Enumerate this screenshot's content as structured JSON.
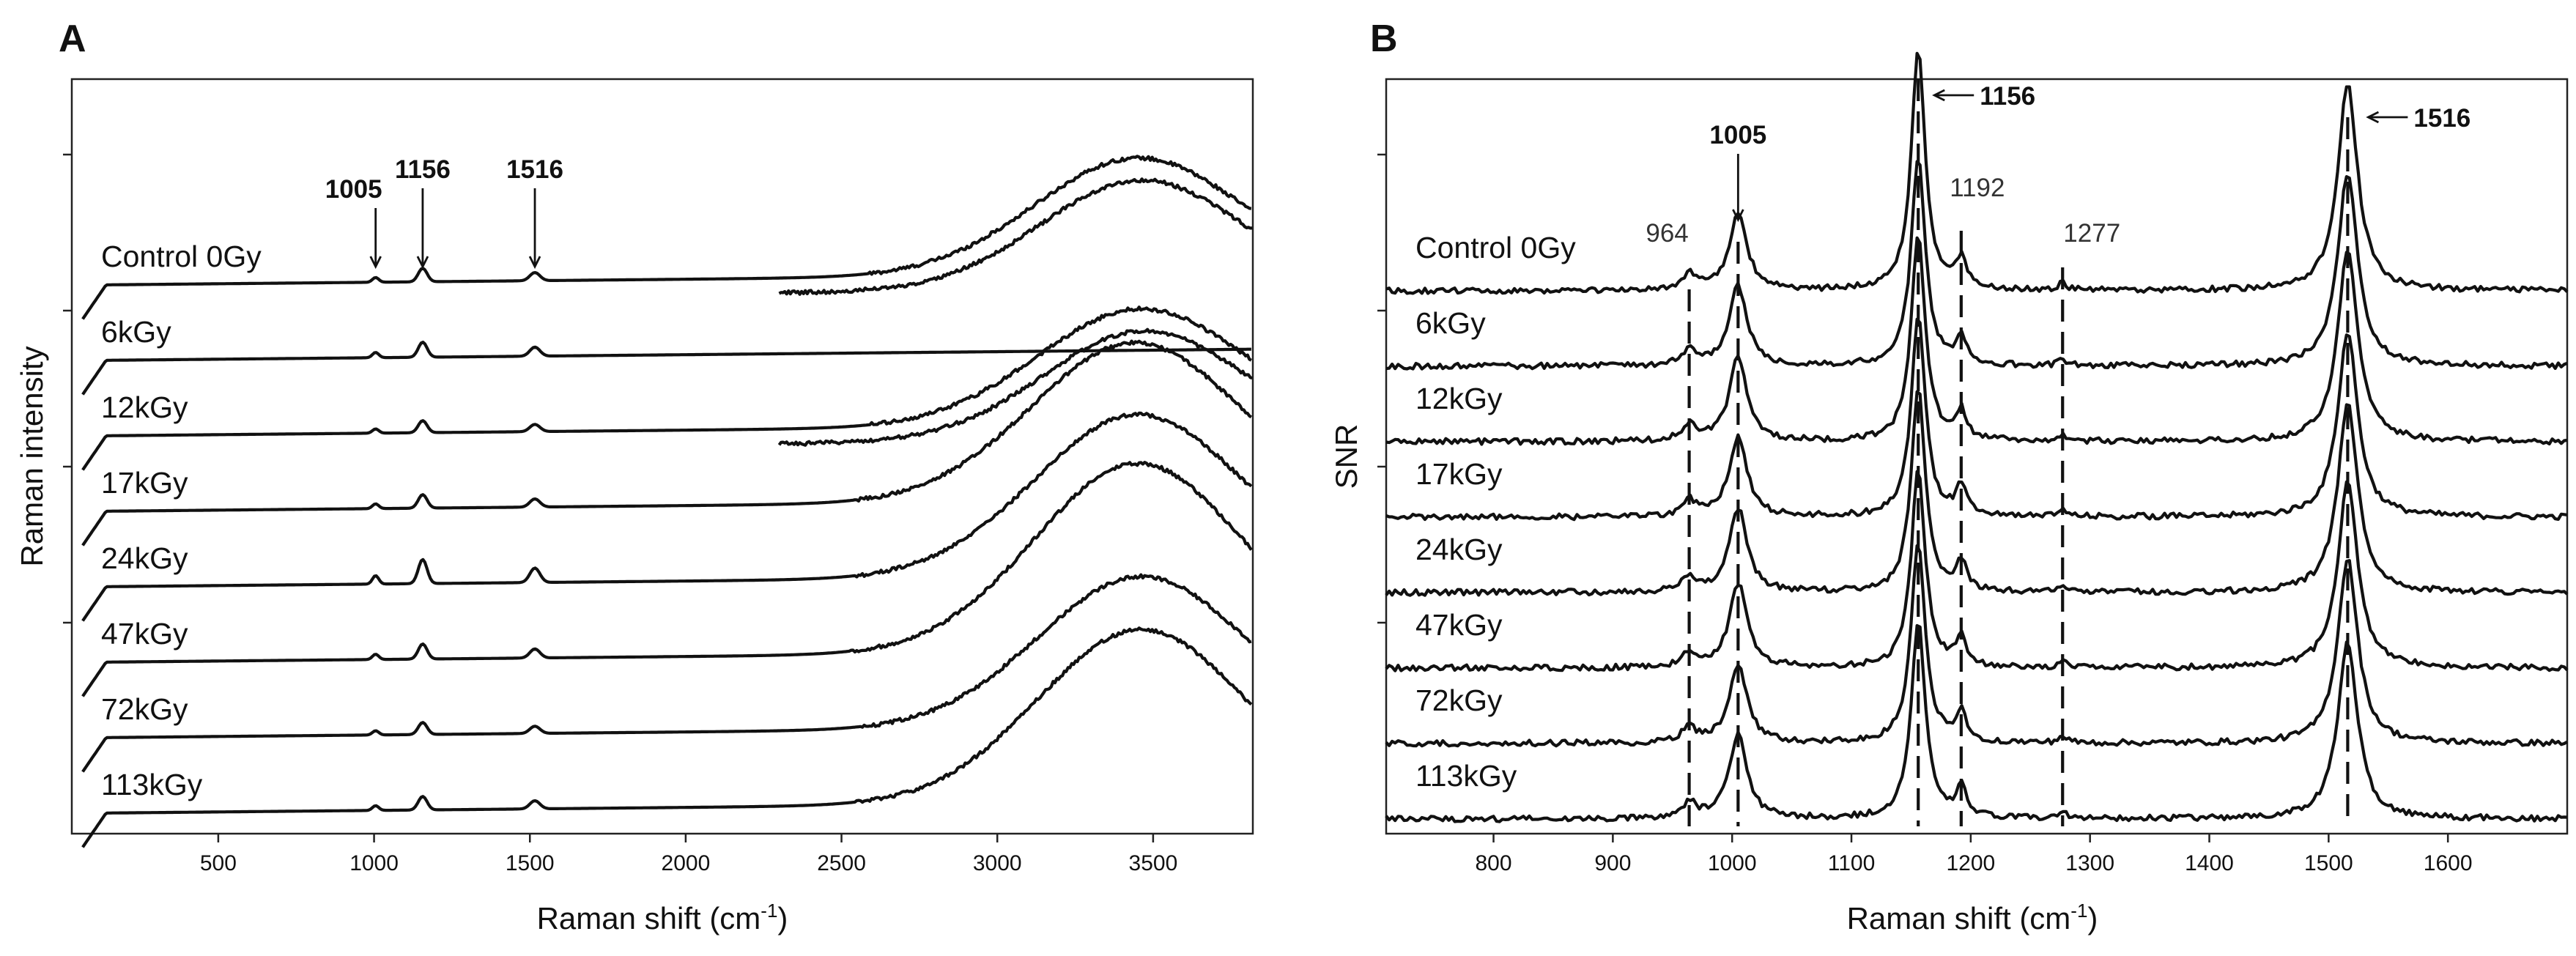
{
  "chart_data": [
    {
      "panel": "A",
      "type": "line",
      "xlabel": "Raman shift (cm-1)",
      "ylabel": "Raman intensity",
      "xlim": [
        30,
        3820
      ],
      "xticks": [
        "500",
        "1000",
        "1500",
        "2000",
        "2500",
        "3000",
        "3500"
      ],
      "xtick_values": [
        500,
        1000,
        1500,
        2000,
        2500,
        3000,
        3500
      ],
      "peak_annotations": [
        {
          "label": "1005",
          "x": 1005
        },
        {
          "label": "1156",
          "x": 1156
        },
        {
          "label": "1516",
          "x": 1516
        }
      ],
      "series": [
        {
          "name": "Control 0Gy",
          "offset": 7.0,
          "band_height": 1.55,
          "band_height_2": 1.45,
          "band_center": 3450,
          "peak_scale": 0.18
        },
        {
          "name": "6kGy",
          "offset": 6.0,
          "band_height": 0.0,
          "band_height_2": 0.0,
          "band_center": 3450,
          "peak_scale": 0.2
        },
        {
          "name": "12kGy",
          "offset": 5.0,
          "band_height": 1.55,
          "band_height_2": 1.45,
          "band_center": 3460,
          "peak_scale": 0.16
        },
        {
          "name": "17kGy",
          "offset": 4.0,
          "band_height": 2.1,
          "band_height_2": 0.0,
          "band_center": 3440,
          "peak_scale": 0.18
        },
        {
          "name": "24kGy",
          "offset": 3.0,
          "band_height": 2.15,
          "band_height_2": 0.0,
          "band_center": 3450,
          "peak_scale": 0.32
        },
        {
          "name": "47kGy",
          "offset": 2.0,
          "band_height": 2.5,
          "band_height_2": 0.0,
          "band_center": 3450,
          "peak_scale": 0.2
        },
        {
          "name": "72kGy",
          "offset": 1.0,
          "band_height": 2.0,
          "band_height_2": 0.0,
          "band_center": 3460,
          "peak_scale": 0.16
        },
        {
          "name": "113kGy",
          "offset": 0.0,
          "band_height": 2.3,
          "band_height_2": 0.0,
          "band_center": 3460,
          "peak_scale": 0.18
        }
      ]
    },
    {
      "panel": "B",
      "type": "line",
      "xlabel": "Raman shift (cm-1)",
      "ylabel": "SNR",
      "xlim": [
        710,
        1700
      ],
      "xticks": [
        "800",
        "900",
        "1000",
        "1100",
        "1200",
        "1300",
        "1400",
        "1500",
        "1600"
      ],
      "xtick_values": [
        800,
        900,
        1000,
        1100,
        1200,
        1300,
        1400,
        1500,
        1600
      ],
      "dashed_lines": [
        964,
        1005,
        1156,
        1192,
        1277,
        1516
      ],
      "peak_annotations": [
        {
          "label": "964",
          "x": 964,
          "bold": false
        },
        {
          "label": "1005",
          "x": 1005,
          "bold": true
        },
        {
          "label": "1156",
          "x": 1156,
          "bold": true
        },
        {
          "label": "1192",
          "x": 1192,
          "bold": false
        },
        {
          "label": "1277",
          "x": 1277,
          "bold": false
        },
        {
          "label": "1516",
          "x": 1516,
          "bold": true
        }
      ],
      "series": [
        {
          "name": "Control 0Gy",
          "offset": 7.0,
          "p1005": 0.9,
          "p1156": 2.85,
          "p1516": 2.45
        },
        {
          "name": "6kGy",
          "offset": 6.0,
          "p1005": 0.95,
          "p1156": 2.5,
          "p1516": 2.3
        },
        {
          "name": "12kGy",
          "offset": 5.0,
          "p1005": 1.0,
          "p1156": 2.45,
          "p1516": 2.3
        },
        {
          "name": "17kGy",
          "offset": 4.0,
          "p1005": 0.95,
          "p1156": 2.4,
          "p1516": 2.2
        },
        {
          "name": "24kGy",
          "offset": 3.0,
          "p1005": 1.0,
          "p1156": 2.45,
          "p1516": 2.25
        },
        {
          "name": "47kGy",
          "offset": 2.0,
          "p1005": 1.0,
          "p1156": 2.35,
          "p1516": 2.2
        },
        {
          "name": "72kGy",
          "offset": 1.0,
          "p1005": 0.95,
          "p1156": 2.4,
          "p1516": 2.2
        },
        {
          "name": "113kGy",
          "offset": 0.0,
          "p1005": 1.0,
          "p1156": 2.35,
          "p1516": 2.1
        }
      ]
    }
  ],
  "panelA": {
    "letter": "A",
    "xlabel_main": "Raman shift (cm",
    "xlabel_sup": "-1",
    "xlabel_close": ")",
    "ylabel": "Raman intensity"
  },
  "panelB": {
    "letter": "B",
    "xlabel_main": "Raman shift (cm",
    "xlabel_sup": "-1",
    "xlabel_close": ")",
    "ylabel": "SNR"
  }
}
